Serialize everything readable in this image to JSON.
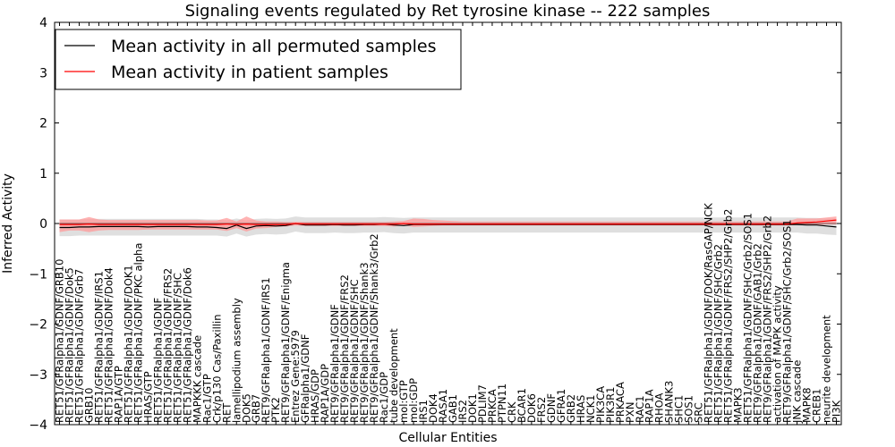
{
  "chart_data": {
    "type": "line",
    "title": "Signaling events regulated by Ret tyrosine kinase -- 222 samples",
    "xlabel": "Cellular Entities",
    "ylabel": "Inferred Activity",
    "ylim": [
      -4,
      4
    ],
    "yticks": [
      -4,
      -3,
      -2,
      -1,
      0,
      1,
      2,
      3,
      4
    ],
    "legend_position": "top-left",
    "categories": [
      "RET51/GFRalpha1/GDNF/GRB10",
      "RET51/GFRalpha1/GDNF/Dok5",
      "RET51/GFRalpha1/GDNF/Grb7",
      "GRB10",
      "RET51/GFRalpha1/GDNF/IRS1",
      "RET51/GFRalpha1/GDNF/Dok4",
      "RAP1A/GTP",
      "RET51/GFRalpha1/GDNF/DOK1",
      "RET51/GFRalpha1/GDNF/PKC alpha",
      "HRAS/GTP",
      "RET51/GFRalpha1/GDNF",
      "RET51/GFRalpha1/GDNF/FRS2",
      "RET51/GFRalpha1/GDNF/SHC",
      "RET51/GFRalpha1/GDNF/Dok6",
      "MAPKKK cascade",
      "Rac1/GTP",
      "Crk/p130 Cas/Paxillin",
      "RET",
      "lamellipodium assembly",
      "DOK5",
      "GRB7",
      "RET9/GFRalpha1/GDNF/IRS1",
      "PTK2",
      "RET9/GFRalpha1/GDNF/Enigma",
      "Entrez Gene:5979",
      "GFRalpha1/GDNF",
      "HRAS/GDP",
      "RAP1A/GDP",
      "RET9/GFRalpha1/GDNF",
      "RET9/GFRalpha1/GDNF/FRS2",
      "RET9/GFRalpha1/GDNF/SHC",
      "RET9/GFRalpha1/GDNF/Shank3",
      "RET9/GFRalpha1/GDNF/Shank3/Grb2",
      "Rac1/GDP",
      "tube development",
      "mol:GTP",
      "mol:GDP",
      "IRS1",
      "DOK4",
      "RASA1",
      "GAB1",
      "IRS2",
      "DOK1",
      "PDLIM7",
      "PRKCA",
      "PTPN11",
      "CRK",
      "BCAR1",
      "DOK6",
      "FRS2",
      "GDNF",
      "GFRA1",
      "GRB2",
      "HRAS",
      "NCK1",
      "PIK3CA",
      "PIK3R1",
      "PRKACA",
      "PXN",
      "RAC1",
      "RAP1A",
      "RHOA",
      "SHANK3",
      "SHC1",
      "SOS1",
      "SRC",
      "RET51/GFRalpha1/GDNF/DOK/RasGAP/NCK",
      "RET51/GFRalpha1/GDNF/SHC/Grb2",
      "RET51/GFRalpha1/GDNF/FRS2/SHP2/Grb2",
      "MAPK3",
      "RET51/GFRalpha1/GDNF/SHC/Grb2/SOS1",
      "RET9/GFRalpha1/GDNF/GAB1/Grb2",
      "RET9/GFRalpha1/GDNF/FRS2/SHP2/Grb2",
      "activation of MAPK activity",
      "RET9/GFRalpha1/GDNF/SHC/Grb2/SOS1",
      "JNK cascade",
      "MAPK8",
      "CREB1",
      "neurite development",
      "PI3K"
    ],
    "series": [
      {
        "name": "Mean activity in all permuted samples",
        "color": "#000000",
        "values": [
          -0.08,
          -0.08,
          -0.07,
          -0.07,
          -0.06,
          -0.06,
          -0.06,
          -0.06,
          -0.06,
          -0.07,
          -0.06,
          -0.06,
          -0.06,
          -0.06,
          -0.07,
          -0.07,
          -0.08,
          -0.1,
          -0.03,
          -0.1,
          -0.05,
          -0.04,
          -0.05,
          -0.04,
          0,
          -0.03,
          -0.03,
          -0.03,
          -0.02,
          -0.03,
          -0.03,
          -0.02,
          -0.02,
          -0.01,
          -0.03,
          -0.04,
          -0.02,
          -0.02,
          -0.02,
          -0.02,
          -0.02,
          -0.02,
          -0.02,
          -0.02,
          -0.02,
          -0.02,
          -0.02,
          -0.02,
          -0.02,
          -0.02,
          -0.02,
          -0.02,
          -0.02,
          -0.02,
          -0.02,
          -0.02,
          -0.02,
          -0.02,
          -0.02,
          -0.02,
          -0.02,
          -0.02,
          -0.02,
          -0.02,
          -0.02,
          -0.02,
          -0.02,
          -0.02,
          -0.02,
          -0.02,
          -0.02,
          -0.02,
          -0.02,
          -0.02,
          -0.02,
          -0.02,
          -0.03,
          -0.03,
          -0.05,
          -0.07
        ],
        "lower": [
          -0.25,
          -0.25,
          -0.24,
          -0.24,
          -0.24,
          -0.24,
          -0.24,
          -0.24,
          -0.24,
          -0.24,
          -0.24,
          -0.24,
          -0.24,
          -0.24,
          -0.24,
          -0.24,
          -0.24,
          -0.26,
          -0.2,
          -0.26,
          -0.22,
          -0.21,
          -0.22,
          -0.21,
          -0.16,
          -0.19,
          -0.19,
          -0.19,
          -0.18,
          -0.19,
          -0.19,
          -0.18,
          -0.18,
          -0.17,
          -0.19,
          -0.2,
          -0.18,
          -0.18,
          -0.18,
          -0.18,
          -0.18,
          -0.18,
          -0.18,
          -0.18,
          -0.18,
          -0.18,
          -0.18,
          -0.18,
          -0.18,
          -0.18,
          -0.18,
          -0.18,
          -0.18,
          -0.18,
          -0.18,
          -0.18,
          -0.18,
          -0.18,
          -0.18,
          -0.18,
          -0.18,
          -0.18,
          -0.18,
          -0.18,
          -0.18,
          -0.18,
          -0.18,
          -0.18,
          -0.18,
          -0.18,
          -0.18,
          -0.18,
          -0.18,
          -0.18,
          -0.18,
          -0.18,
          -0.2,
          -0.2,
          -0.22,
          -0.23
        ],
        "upper": [
          0.08,
          0.08,
          0.08,
          0.09,
          0.09,
          0.09,
          0.09,
          0.09,
          0.09,
          0.09,
          0.09,
          0.09,
          0.09,
          0.09,
          0.09,
          0.08,
          0.08,
          0.06,
          0.1,
          0.06,
          0.09,
          0.1,
          0.09,
          0.1,
          0.14,
          0.12,
          0.12,
          0.12,
          0.12,
          0.12,
          0.12,
          0.12,
          0.12,
          0.13,
          0.12,
          0.11,
          0.12,
          0.12,
          0.12,
          0.12,
          0.12,
          0.12,
          0.12,
          0.12,
          0.12,
          0.12,
          0.12,
          0.12,
          0.12,
          0.12,
          0.12,
          0.12,
          0.12,
          0.12,
          0.12,
          0.12,
          0.12,
          0.12,
          0.12,
          0.12,
          0.12,
          0.12,
          0.12,
          0.12,
          0.12,
          0.12,
          0.12,
          0.12,
          0.12,
          0.12,
          0.12,
          0.12,
          0.12,
          0.12,
          0.12,
          0.12,
          0.11,
          0.11,
          0.1,
          0.09
        ]
      },
      {
        "name": "Mean activity in patient samples",
        "color": "#ff0000",
        "values": [
          -0.02,
          -0.02,
          -0.02,
          -0.01,
          -0.02,
          -0.02,
          -0.02,
          -0.02,
          -0.02,
          -0.02,
          -0.02,
          -0.02,
          -0.02,
          -0.02,
          -0.02,
          -0.02,
          -0.02,
          -0.01,
          -0.02,
          -0.01,
          -0.02,
          -0.02,
          -0.02,
          -0.02,
          0,
          -0.01,
          -0.01,
          -0.01,
          -0.01,
          -0.01,
          -0.01,
          -0.01,
          -0.01,
          -0.01,
          -0.01,
          0,
          -0.01,
          -0.01,
          -0.01,
          -0.01,
          -0.01,
          -0.01,
          -0.01,
          -0.01,
          -0.01,
          -0.01,
          -0.01,
          -0.01,
          -0.01,
          -0.01,
          -0.01,
          -0.01,
          -0.01,
          -0.01,
          -0.01,
          -0.01,
          -0.01,
          -0.01,
          -0.01,
          -0.01,
          -0.01,
          -0.01,
          -0.01,
          -0.01,
          -0.01,
          -0.01,
          -0.01,
          -0.01,
          -0.01,
          -0.01,
          -0.01,
          -0.01,
          -0.01,
          -0.01,
          -0.01,
          0.01,
          0.02,
          0.03,
          0.05,
          0.07
        ],
        "lower": [
          -0.17,
          -0.14,
          -0.14,
          -0.17,
          -0.14,
          -0.13,
          -0.13,
          -0.13,
          -0.13,
          -0.12,
          -0.12,
          -0.12,
          -0.12,
          -0.12,
          -0.12,
          -0.12,
          -0.12,
          -0.15,
          -0.09,
          -0.16,
          -0.1,
          -0.09,
          -0.07,
          -0.06,
          -0.04,
          -0.05,
          -0.05,
          -0.05,
          -0.05,
          -0.05,
          -0.05,
          -0.05,
          -0.05,
          -0.05,
          -0.06,
          -0.04,
          -0.07,
          -0.06,
          -0.05,
          -0.04,
          -0.04,
          -0.04,
          -0.04,
          -0.04,
          -0.04,
          -0.04,
          -0.04,
          -0.04,
          -0.04,
          -0.04,
          -0.04,
          -0.04,
          -0.04,
          -0.04,
          -0.04,
          -0.04,
          -0.04,
          -0.04,
          -0.04,
          -0.04,
          -0.04,
          -0.04,
          -0.04,
          -0.04,
          -0.04,
          -0.04,
          -0.04,
          -0.04,
          -0.04,
          -0.04,
          -0.04,
          -0.04,
          -0.04,
          -0.04,
          -0.04,
          -0.03,
          -0.03,
          -0.03,
          -0.02,
          -0.02
        ],
        "upper": [
          0.08,
          0.08,
          0.08,
          0.13,
          0.08,
          0.07,
          0.07,
          0.07,
          0.07,
          0.07,
          0.07,
          0.07,
          0.07,
          0.07,
          0.07,
          0.06,
          0.06,
          0.11,
          0.04,
          0.14,
          0.06,
          0.04,
          0.04,
          0.03,
          0.03,
          0.03,
          0.03,
          0.03,
          0.03,
          0.03,
          0.03,
          0.03,
          0.03,
          0.03,
          0.04,
          0.05,
          0.1,
          0.09,
          0.07,
          0.06,
          0.05,
          0.04,
          0.04,
          0.04,
          0.04,
          0.04,
          0.04,
          0.04,
          0.04,
          0.04,
          0.04,
          0.04,
          0.04,
          0.04,
          0.04,
          0.04,
          0.04,
          0.04,
          0.04,
          0.04,
          0.04,
          0.04,
          0.04,
          0.04,
          0.04,
          0.04,
          0.04,
          0.04,
          0.04,
          0.04,
          0.04,
          0.04,
          0.04,
          0.04,
          0.04,
          0.1,
          0.1,
          0.1,
          0.12,
          0.14
        ]
      }
    ]
  },
  "colors": {
    "permuted_band": "#d9d9d9",
    "patient_band": "#ff9999",
    "axis": "#000000"
  }
}
